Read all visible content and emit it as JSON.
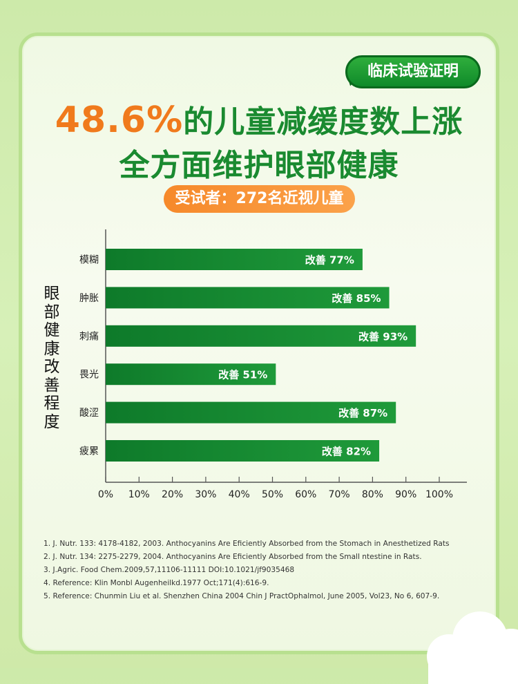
{
  "badge": "临床试验证明",
  "headline": {
    "highlight": "48.6%",
    "line1_rest": "的儿童减缓度数上涨",
    "line2": "全方面维护眼部健康"
  },
  "subject": "受试者：272名近视儿童",
  "y_axis_title": "眼部健康改善程度",
  "chart_data": {
    "type": "bar",
    "orientation": "horizontal",
    "categories": [
      "模糊",
      "肿胀",
      "刺痛",
      "畏光",
      "酸涩",
      "疲累"
    ],
    "values": [
      77,
      85,
      93,
      51,
      87,
      82
    ],
    "label_prefix": "改善",
    "xlim": [
      0,
      100
    ],
    "x_ticks": [
      "0%",
      "10%",
      "20%",
      "30%",
      "40%",
      "50%",
      "60%",
      "70%",
      "80%",
      "90%",
      "100%"
    ],
    "bar_color": "#138a30"
  },
  "references": [
    "1. J. Nutr. 133: 4178-4182, 2003. Anthocyanins Are Eficiently Absorbed from the Stomach in Anesthetized Rats",
    "2. J. Nutr. 134: 2275-2279, 2004. Anthocyanins Are Eficiently Absorbed from the Small ntestine in Rats.",
    "3. J.Agric. Food Chem.2009,57,11106-11111 DOI:10.1021/jf9035468",
    "4. Reference: Klin Monbl Augenheilkd.1977 Oct;171(4):616-9.",
    "5. Reference: Chunmin Liu et al. Shenzhen China 2004 Chin J PractOphalmol, June 2005, Vol23, No 6, 607-9."
  ]
}
